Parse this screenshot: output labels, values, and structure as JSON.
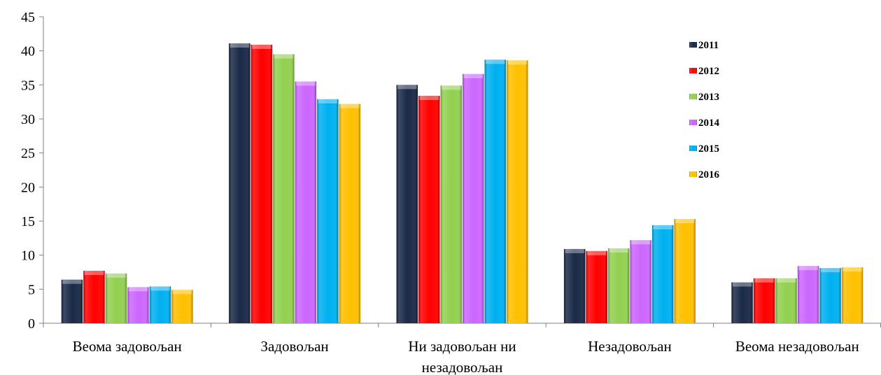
{
  "chart_data": {
    "type": "bar",
    "title": "",
    "xlabel": "",
    "ylabel": "",
    "ylim": [
      0,
      45
    ],
    "yticks": [
      0,
      5,
      10,
      15,
      20,
      25,
      30,
      35,
      40,
      45
    ],
    "grid": false,
    "legend_position": "top-right",
    "bar_style": "3d-bevel",
    "categories": [
      [
        "Веома задовољан"
      ],
      [
        "Задовољан"
      ],
      [
        "Ни задовољан ни",
        "незадовољан"
      ],
      [
        "Незадовољан"
      ],
      [
        "Веома незадовољан"
      ]
    ],
    "series": [
      {
        "name": "2011",
        "color": "#1a2a48",
        "values": [
          6.4,
          41.1,
          35.0,
          10.9,
          6.0
        ]
      },
      {
        "name": "2012",
        "color": "#ff0000",
        "values": [
          7.7,
          40.9,
          33.4,
          10.6,
          6.6
        ]
      },
      {
        "name": "2013",
        "color": "#92d050",
        "values": [
          7.3,
          39.5,
          34.9,
          11.0,
          6.6
        ]
      },
      {
        "name": "2014",
        "color": "#cc66ff",
        "values": [
          5.3,
          35.5,
          36.6,
          12.2,
          8.4
        ]
      },
      {
        "name": "2015",
        "color": "#00b0f0",
        "values": [
          5.4,
          32.9,
          38.7,
          14.4,
          8.1
        ]
      },
      {
        "name": "2016",
        "color": "#ffc000",
        "values": [
          4.9,
          32.2,
          38.6,
          15.3,
          8.2
        ]
      }
    ]
  }
}
